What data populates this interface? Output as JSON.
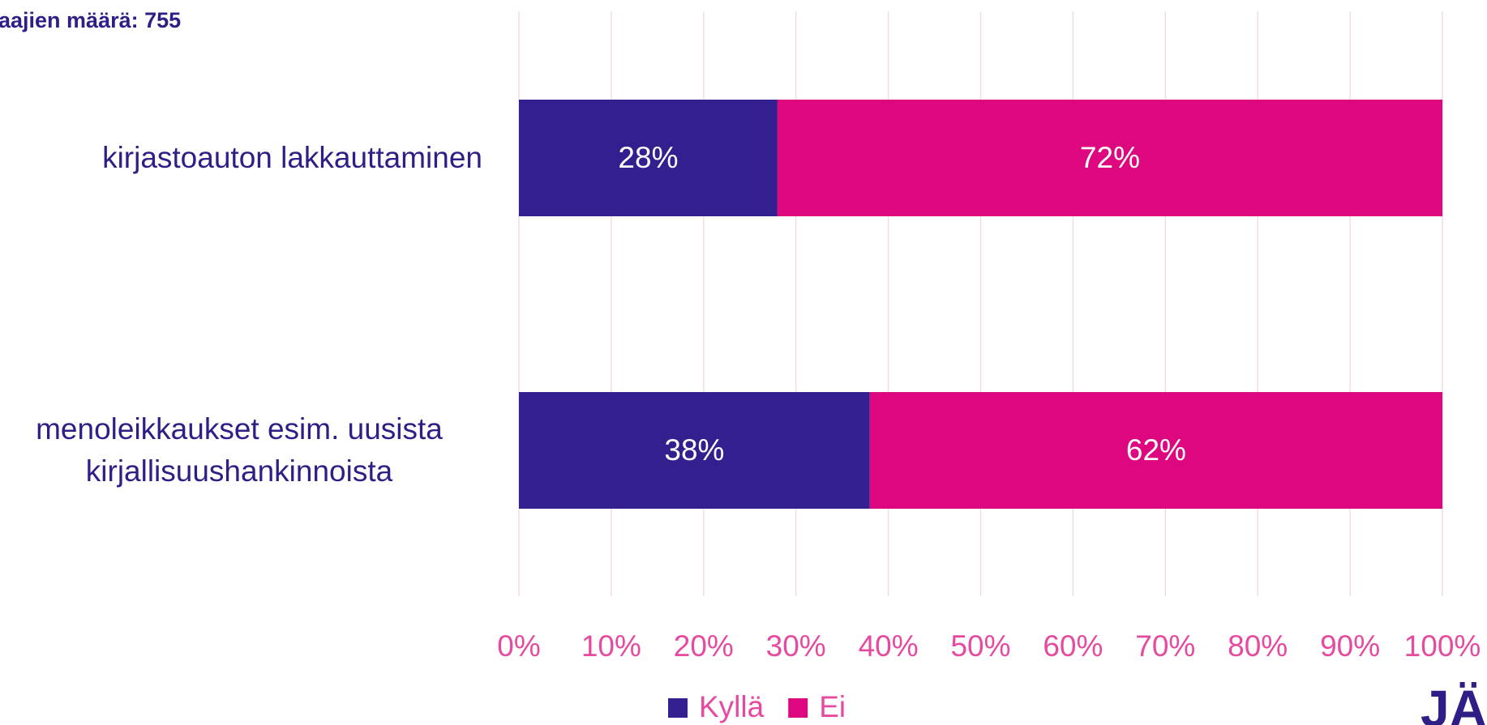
{
  "chart_data": {
    "type": "stacked_barh",
    "title": "aajien määrä: 755",
    "categories": [
      "kirjastoauton lakkauttaminen",
      "menoleikkaukset esim. uusista kirjallisuushankinnoista"
    ],
    "series": [
      {
        "name": "Kyllä",
        "color": "#33208e",
        "values": [
          28,
          38
        ],
        "value_labels": [
          "28%",
          "38%"
        ]
      },
      {
        "name": "Ei",
        "color": "#dd0880",
        "values": [
          72,
          62
        ],
        "value_labels": [
          "72%",
          "62%"
        ]
      }
    ],
    "xlim": [
      0,
      100
    ],
    "xticks": [
      {
        "value": 0,
        "label": "0%"
      },
      {
        "value": 10,
        "label": "10%"
      },
      {
        "value": 20,
        "label": "20%"
      },
      {
        "value": 30,
        "label": "30%"
      },
      {
        "value": 40,
        "label": "40%"
      },
      {
        "value": 50,
        "label": "50%"
      },
      {
        "value": 60,
        "label": "60%"
      },
      {
        "value": 70,
        "label": "70%"
      },
      {
        "value": 80,
        "label": "80%"
      },
      {
        "value": 90,
        "label": "90%"
      },
      {
        "value": 100,
        "label": "100%"
      }
    ],
    "grid": true,
    "legend": "bottom",
    "logo": "JÄM"
  }
}
